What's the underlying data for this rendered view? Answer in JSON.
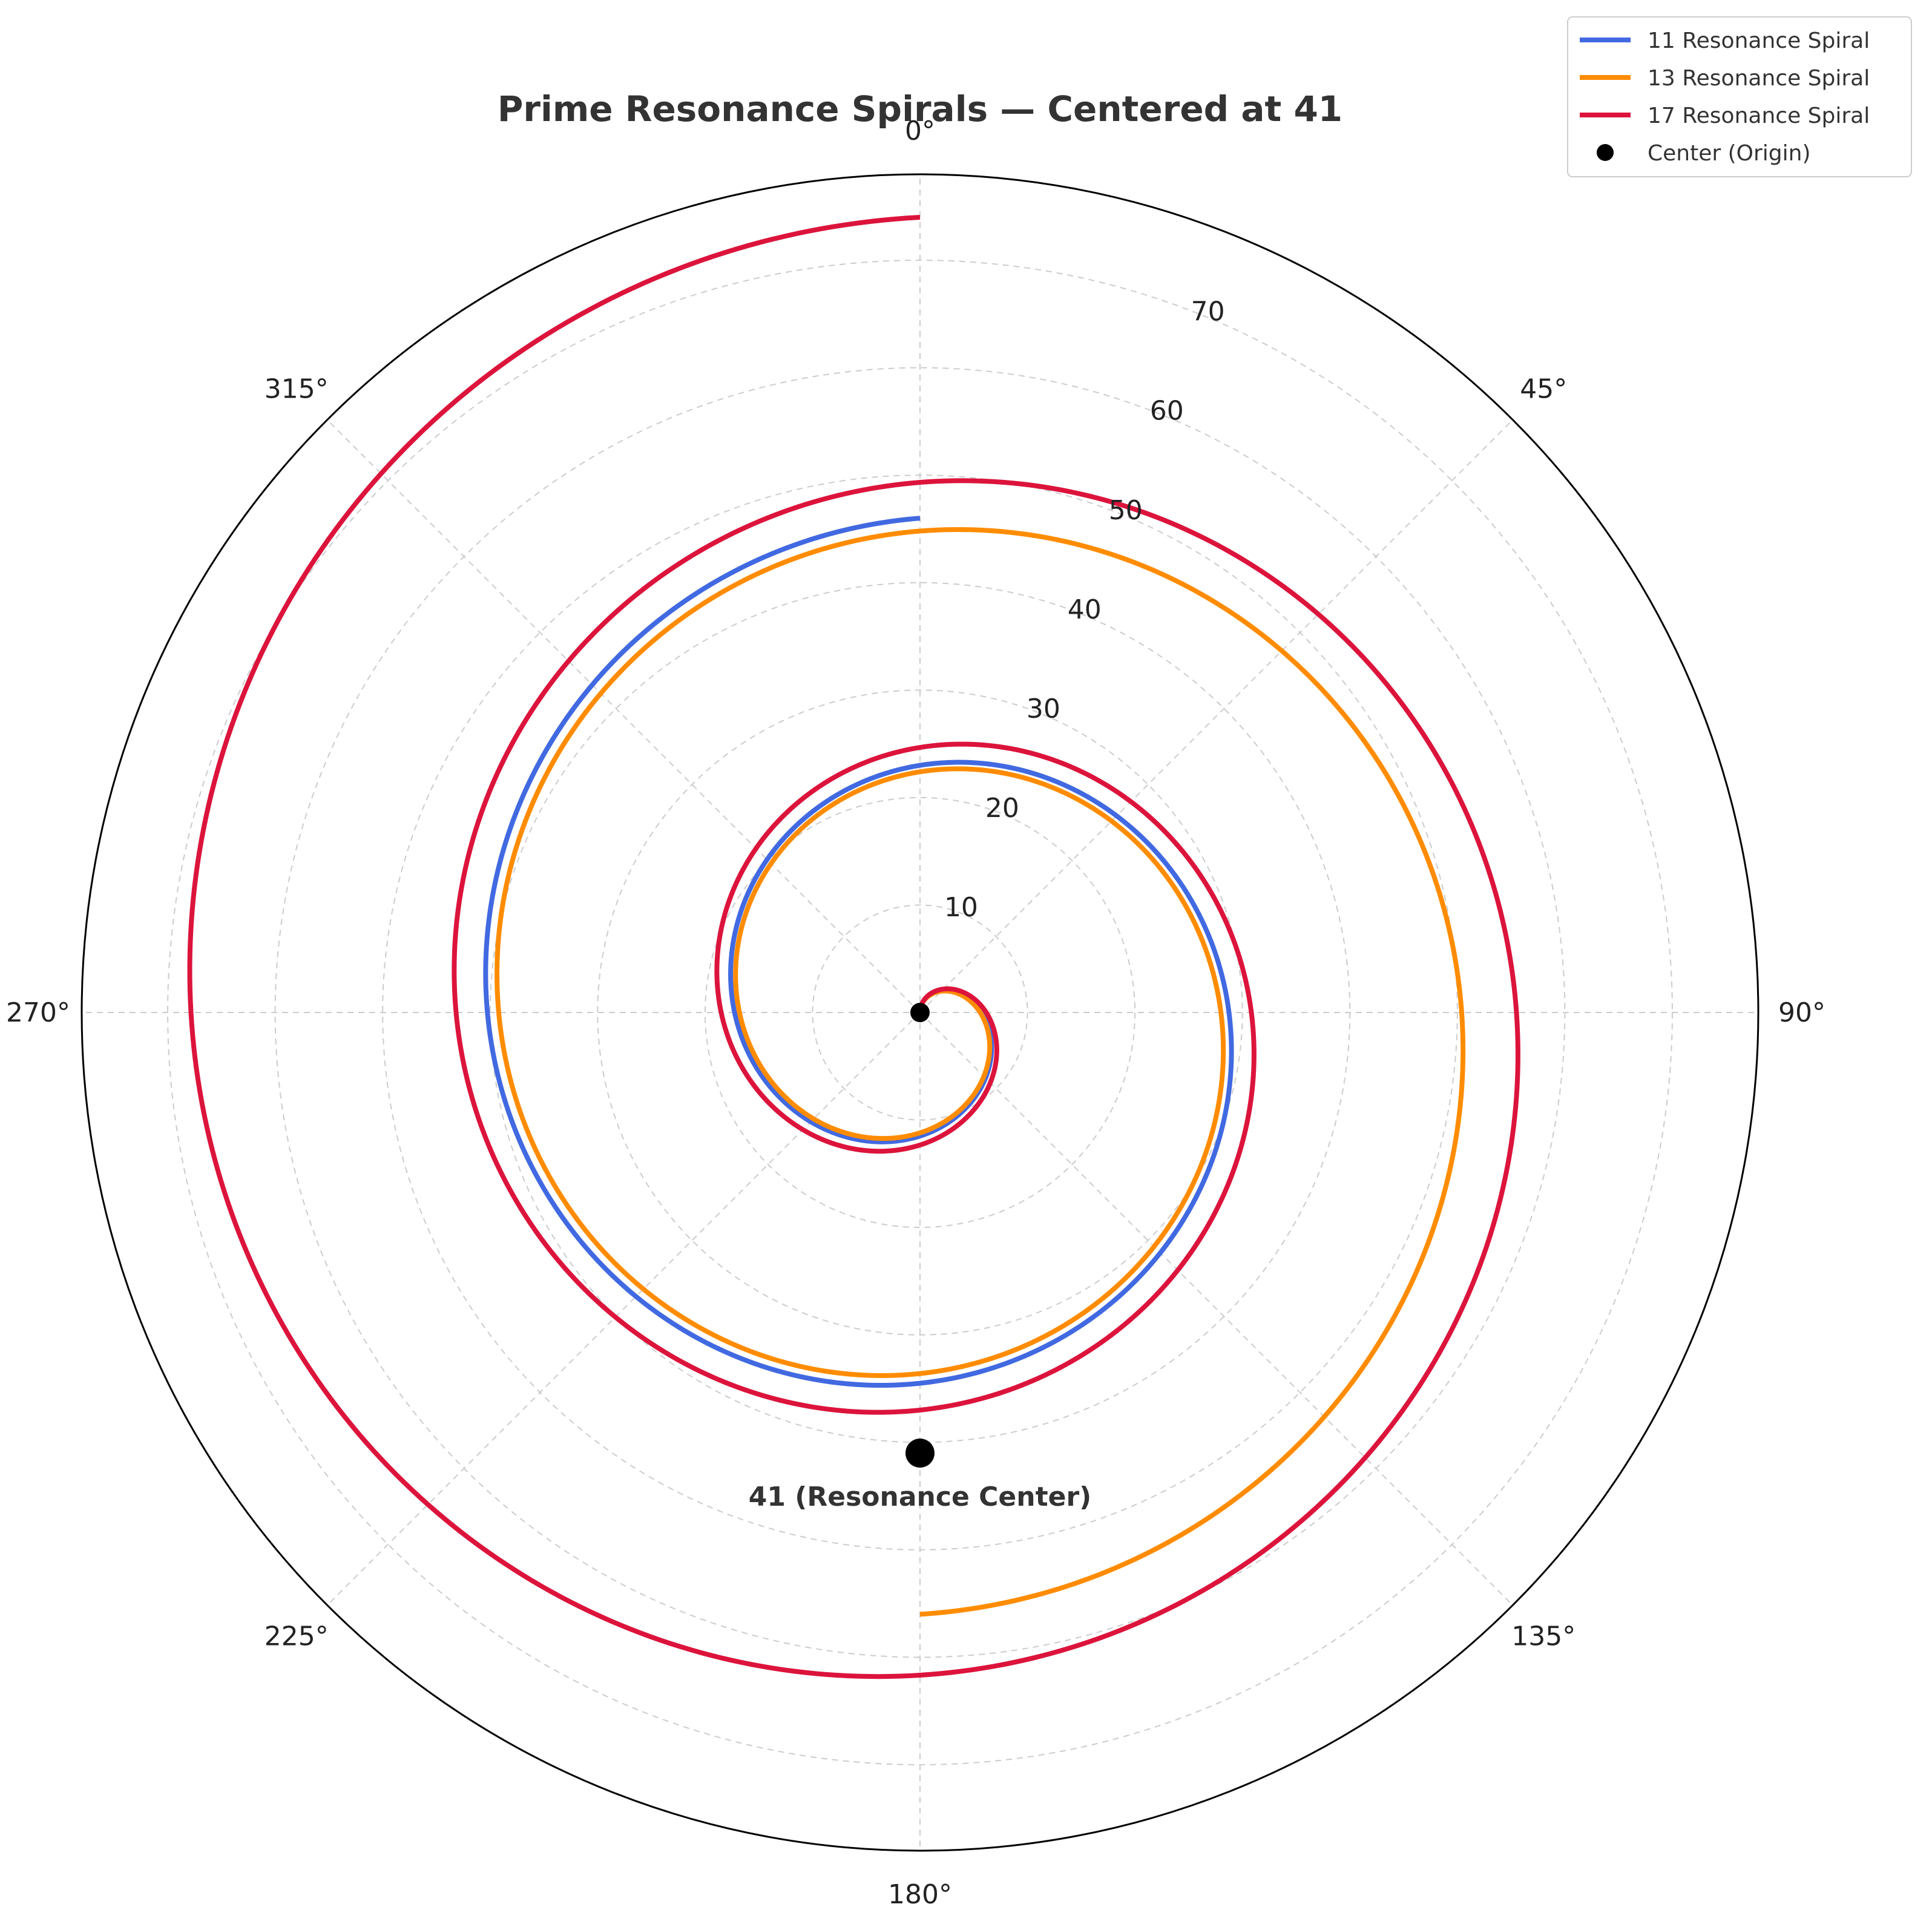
{
  "chart_data": {
    "type": "line",
    "projection": "polar",
    "title": "Prime Resonance Spirals — Centered at 41",
    "theta_direction": "clockwise",
    "theta_zero": "top",
    "angle_ticks": [
      "0°",
      "45°",
      "90°",
      "135°",
      "180°",
      "225°",
      "270°",
      "315°"
    ],
    "angle_tick_values_deg": [
      0,
      45,
      90,
      135,
      180,
      225,
      270,
      315
    ],
    "radial_ticks": [
      10,
      20,
      30,
      40,
      50,
      60,
      70
    ],
    "rlim": [
      0,
      78
    ],
    "grid": true,
    "legend_position": "top-right",
    "series": [
      {
        "name": "11 Resonance Spiral",
        "color": "#4169E1",
        "turns": 2,
        "r_per_turn": 11,
        "r_start": 0,
        "r_end": 46
      },
      {
        "name": "13 Resonance Spiral",
        "color": "#FF8C00",
        "turns": 2.5,
        "r_per_turn": 13,
        "r_start": 0,
        "r_end": 56
      },
      {
        "name": "17 Resonance Spiral",
        "color": "#DC143C",
        "turns": 3,
        "r_per_turn": 17,
        "r_start": 0,
        "r_end": 74
      }
    ],
    "center_point": {
      "label": "Center (Origin)",
      "theta_deg": 0,
      "r": 0,
      "color": "#000000"
    },
    "annotation": {
      "text": "41 (Resonance Center)",
      "theta_deg": 180,
      "r": 41,
      "color": "#000000"
    }
  }
}
